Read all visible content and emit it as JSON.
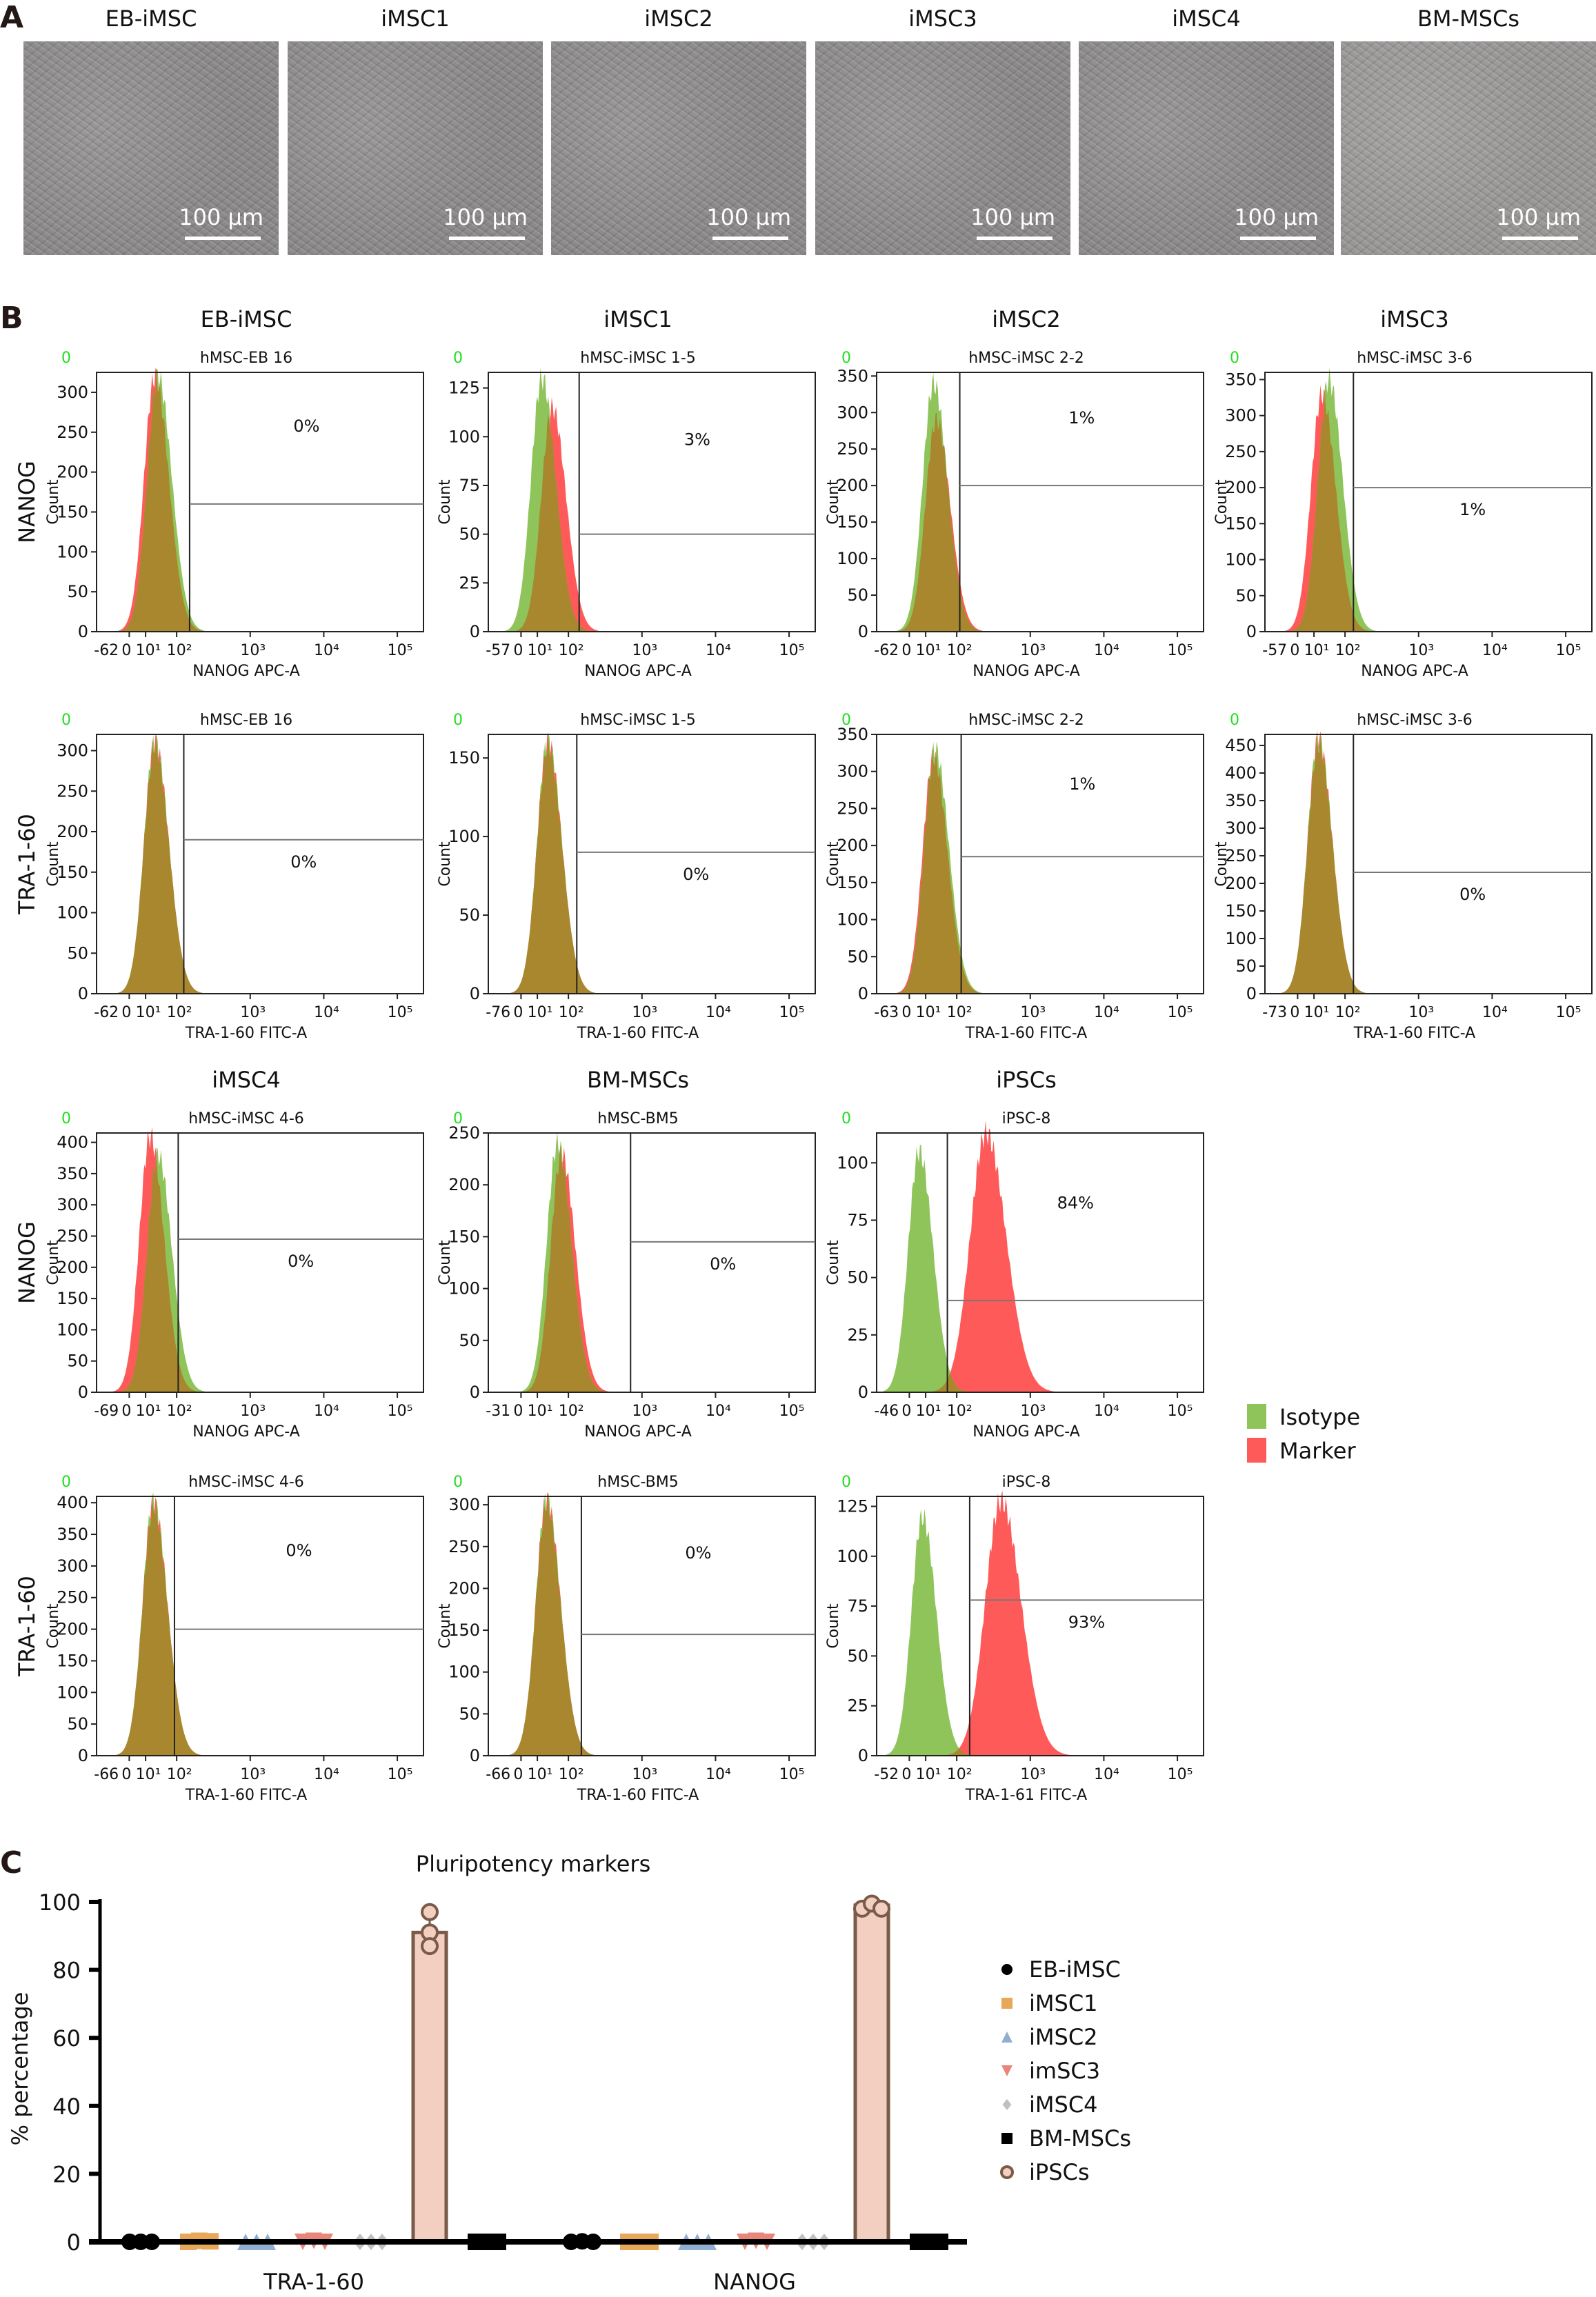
{
  "panel_labels": {
    "a": "A",
    "b": "B",
    "c": "C"
  },
  "micrographs": [
    {
      "title": "EB-iMSC",
      "scale_bar": "100 µm"
    },
    {
      "title": "iMSC1",
      "scale_bar": "100 µm"
    },
    {
      "title": "iMSC2",
      "scale_bar": "100 µm"
    },
    {
      "title": "iMSC3",
      "scale_bar": "100 µm"
    },
    {
      "title": "iMSC4",
      "scale_bar": "100 µm"
    },
    {
      "title": "BM-MSCs",
      "scale_bar": "100 µm"
    }
  ],
  "flow": {
    "count_label": "Count",
    "corner_label": "0",
    "row_labels": [
      "NANOG",
      "TRA-1-60",
      "NANOG",
      "TRA-1-60"
    ],
    "column_titles": [
      [
        "EB-iMSC",
        "iMSC1",
        "iMSC2",
        "iMSC3"
      ],
      [],
      [
        "iMSC4",
        "BM-MSCs",
        "iPSCs"
      ],
      []
    ],
    "x_ticks": [
      "0",
      "10¹",
      "10²",
      "10³",
      "10⁴",
      "10⁵"
    ],
    "legend": [
      {
        "label": "Isotype",
        "color": "#8fc45a"
      },
      {
        "label": "Marker",
        "color": "#ff5a5a"
      }
    ],
    "overlap_color": "#a8872e"
  },
  "chart_data": [
    {
      "type": "histogram",
      "panels": [
        {
          "row": 0,
          "col": 0,
          "sample": "hMSC-EB 16",
          "xlabel": "NANOG APC-A",
          "x_min": "-62",
          "yticks": [
            0,
            50,
            100,
            150,
            200,
            250,
            300
          ],
          "ymax": 325,
          "gate_pct": "0%",
          "gate_from": 150,
          "gate_level": 160,
          "pct_above": true,
          "isotype": {
            "peak_x": 25,
            "peak_count": 320
          },
          "marker": {
            "peak_x": 20,
            "peak_count": 320
          }
        },
        {
          "row": 0,
          "col": 1,
          "sample": "hMSC-iMSC 1-5",
          "xlabel": "NANOG APC-A",
          "x_min": "-57",
          "yticks": [
            0,
            25,
            50,
            75,
            100,
            125
          ],
          "ymax": 133,
          "gate_pct": "3%",
          "gate_from": 140,
          "gate_level": 50,
          "pct_above": true,
          "isotype": {
            "peak_x": 14,
            "peak_count": 130
          },
          "marker": {
            "peak_x": 30,
            "peak_count": 115
          }
        },
        {
          "row": 0,
          "col": 2,
          "sample": "hMSC-iMSC 2-2",
          "xlabel": "NANOG APC-A",
          "x_min": "-62",
          "yticks": [
            0,
            50,
            100,
            150,
            200,
            250,
            300,
            350
          ],
          "ymax": 355,
          "gate_pct": "1%",
          "gate_from": 110,
          "gate_level": 200,
          "pct_above": true,
          "isotype": {
            "peak_x": 18,
            "peak_count": 340
          },
          "marker": {
            "peak_x": 22,
            "peak_count": 290
          }
        },
        {
          "row": 0,
          "col": 3,
          "sample": "hMSC-iMSC 3-6",
          "xlabel": "NANOG APC-A",
          "x_min": "-57",
          "yticks": [
            0,
            50,
            100,
            150,
            200,
            250,
            300,
            350
          ],
          "ymax": 360,
          "gate_pct": "1%",
          "gate_from": 130,
          "gate_level": 200,
          "pct_above": false,
          "isotype": {
            "peak_x": 30,
            "peak_count": 350
          },
          "marker": {
            "peak_x": 18,
            "peak_count": 330
          }
        },
        {
          "row": 1,
          "col": 0,
          "sample": "hMSC-EB 16",
          "xlabel": "TRA-1-60 FITC-A",
          "x_min": "-62",
          "yticks": [
            0,
            50,
            100,
            150,
            200,
            250,
            300
          ],
          "ymax": 320,
          "gate_pct": "0%",
          "gate_from": 125,
          "gate_level": 190,
          "pct_above": false,
          "isotype": {
            "peak_x": 20,
            "peak_count": 310
          },
          "marker": {
            "peak_x": 20,
            "peak_count": 310
          }
        },
        {
          "row": 1,
          "col": 1,
          "sample": "hMSC-iMSC 1-5",
          "xlabel": "TRA-1-60 FITC-A",
          "x_min": "-76",
          "yticks": [
            0,
            50,
            100,
            150
          ],
          "ymax": 165,
          "gate_pct": "0%",
          "gate_from": 130,
          "gate_level": 90,
          "pct_above": false,
          "isotype": {
            "peak_x": 22,
            "peak_count": 160
          },
          "marker": {
            "peak_x": 22,
            "peak_count": 160
          }
        },
        {
          "row": 1,
          "col": 2,
          "sample": "hMSC-iMSC 2-2",
          "xlabel": "TRA-1-60 FITC-A",
          "x_min": "-63",
          "yticks": [
            0,
            50,
            100,
            150,
            200,
            250,
            300,
            350
          ],
          "ymax": 350,
          "gate_pct": "1%",
          "gate_from": 115,
          "gate_level": 185,
          "pct_above": true,
          "isotype": {
            "peak_x": 20,
            "peak_count": 330
          },
          "marker": {
            "peak_x": 18,
            "peak_count": 320
          }
        },
        {
          "row": 1,
          "col": 3,
          "sample": "hMSC-iMSC 3-6",
          "xlabel": "TRA-1-60 FITC-A",
          "x_min": "-73",
          "yticks": [
            0,
            50,
            100,
            150,
            200,
            250,
            300,
            350,
            400,
            450
          ],
          "ymax": 470,
          "gate_pct": "0%",
          "gate_from": 130,
          "gate_level": 220,
          "pct_above": false,
          "isotype": {
            "peak_x": 14,
            "peak_count": 460
          },
          "marker": {
            "peak_x": 14,
            "peak_count": 460
          }
        },
        {
          "row": 2,
          "col": 0,
          "sample": "hMSC-iMSC 4-6",
          "xlabel": "NANOG APC-A",
          "x_min": "-69",
          "yticks": [
            0,
            50,
            100,
            150,
            200,
            250,
            300,
            350,
            400
          ],
          "ymax": 415,
          "gate_pct": "0%",
          "gate_from": 105,
          "gate_level": 245,
          "pct_above": false,
          "isotype": {
            "peak_x": 25,
            "peak_count": 380
          },
          "marker": {
            "peak_x": 14,
            "peak_count": 410
          }
        },
        {
          "row": 2,
          "col": 1,
          "sample": "hMSC-BM5",
          "xlabel": "NANOG APC-A",
          "x_min": "-31",
          "yticks": [
            0,
            50,
            100,
            150,
            200,
            250
          ],
          "ymax": 250,
          "gate_pct": "0%",
          "gate_from": 700,
          "gate_level": 145,
          "pct_above": false,
          "isotype": {
            "peak_x": 45,
            "peak_count": 240
          },
          "marker": {
            "peak_x": 60,
            "peak_count": 230
          }
        },
        {
          "row": 2,
          "col": 2,
          "sample": "iPSC-8",
          "xlabel": "NANOG APC-A",
          "x_min": "-46",
          "yticks": [
            0,
            25,
            50,
            75,
            100
          ],
          "ymax": 113,
          "gate_pct": "84%",
          "gate_from": 50,
          "gate_level": 40,
          "pct_above": true,
          "isotype": {
            "peak_x": 6,
            "peak_count": 105
          },
          "marker": {
            "peak_x": 250,
            "peak_count": 113
          }
        },
        {
          "row": 3,
          "col": 0,
          "sample": "hMSC-iMSC 4-6",
          "xlabel": "TRA-1-60 FITC-A",
          "x_min": "-66",
          "yticks": [
            0,
            50,
            100,
            150,
            200,
            250,
            300,
            350,
            400
          ],
          "ymax": 410,
          "gate_pct": "0%",
          "gate_from": 85,
          "gate_level": 200,
          "pct_above": true,
          "isotype": {
            "peak_x": 18,
            "peak_count": 400
          },
          "marker": {
            "peak_x": 18,
            "peak_count": 400
          }
        },
        {
          "row": 3,
          "col": 1,
          "sample": "hMSC-BM5",
          "xlabel": "TRA-1-60 FITC-A",
          "x_min": "-66",
          "yticks": [
            0,
            50,
            100,
            150,
            200,
            250,
            300
          ],
          "ymax": 310,
          "gate_pct": "0%",
          "gate_from": 150,
          "gate_level": 145,
          "pct_above": true,
          "isotype": {
            "peak_x": 20,
            "peak_count": 305
          },
          "marker": {
            "peak_x": 20,
            "peak_count": 305
          }
        },
        {
          "row": 3,
          "col": 2,
          "sample": "iPSC-8",
          "xlabel": "TRA-1-61 FITC-A",
          "x_min": "-52",
          "yticks": [
            0,
            25,
            50,
            75,
            100,
            125
          ],
          "ymax": 130,
          "gate_pct": "93%",
          "gate_from": 150,
          "gate_level": 78,
          "pct_above": false,
          "isotype": {
            "peak_x": 8,
            "peak_count": 120
          },
          "marker": {
            "peak_x": 400,
            "peak_count": 128
          }
        }
      ]
    },
    {
      "type": "bar",
      "title": "Pluripotency markers",
      "ylabel": "% percentage",
      "ylim": [
        0,
        100
      ],
      "yticks": [
        0,
        20,
        40,
        60,
        80,
        100
      ],
      "categories": [
        "TRA-1-60",
        "NANOG"
      ],
      "series": [
        {
          "name": "EB-iMSC",
          "marker": "circle",
          "color": "#000000",
          "values": [
            0,
            0
          ],
          "points": [
            [
              0,
              0,
              0
            ],
            [
              0,
              0.5,
              0
            ]
          ]
        },
        {
          "name": "iMSC1",
          "marker": "square",
          "color": "#e8a85a",
          "values": [
            0.5,
            0
          ],
          "points": [
            [
              0,
              1,
              0.5
            ],
            [
              0,
              0,
              0
            ]
          ]
        },
        {
          "name": "iMSC2",
          "marker": "triangle-up",
          "color": "#90aed0",
          "values": [
            0,
            0
          ],
          "points": [
            [
              0,
              0,
              0
            ],
            [
              0,
              0,
              0
            ]
          ]
        },
        {
          "name": "imSC3",
          "marker": "triangle-down",
          "color": "#e8867a",
          "values": [
            0.3,
            0.3
          ],
          "points": [
            [
              0,
              1,
              0
            ],
            [
              0,
              1,
              0
            ]
          ]
        },
        {
          "name": "iMSC4",
          "marker": "diamond",
          "color": "#c0c0c0",
          "values": [
            0,
            0
          ],
          "points": [
            [
              0,
              0,
              0
            ],
            [
              0,
              0,
              0
            ]
          ]
        },
        {
          "name": "iPSCs",
          "marker": "open-circle",
          "color": "#f2cfc0",
          "stroke": "#7a5a48",
          "values": [
            91,
            99
          ],
          "points": [
            [
              97,
              91,
              87
            ],
            [
              98,
              99.5,
              98
            ]
          ]
        },
        {
          "name": "BM-MSCs",
          "marker": "square",
          "color": "#000000",
          "values": [
            0,
            0
          ],
          "points": [
            [
              0,
              0,
              0
            ],
            [
              0,
              0,
              0
            ]
          ]
        }
      ],
      "legend_order": [
        "EB-iMSC",
        "iMSC1",
        "iMSC2",
        "imSC3",
        "iMSC4",
        "BM-MSCs",
        "iPSCs"
      ],
      "legend_placement": "right"
    }
  ]
}
